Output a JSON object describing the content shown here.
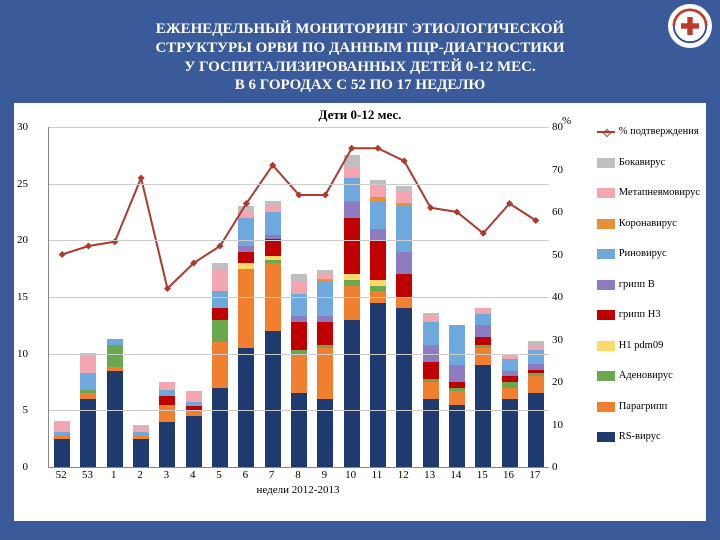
{
  "title_lines": [
    "ЕЖЕНЕДЕЛЬНЫЙ МОНИТОРИНГ ЭТИОЛОГИЧЕСКОЙ",
    "СТРУКТУРЫ ОРВИ ПО ДАННЫМ ПЦР-ДИАГНОСТИКИ",
    "У ГОСПИТАЛИЗИРОВАННЫХ ДЕТЕЙ 0-12 МЕС.",
    "В 6 ГОРОДАХ С 52 ПО 17 НЕДЕЛЮ"
  ],
  "chart": {
    "title": "Дети 0-12 мес.",
    "x_axis_label": "недели 2012-2013",
    "y_left": {
      "min": 0,
      "max": 30,
      "step": 5
    },
    "y_right": {
      "min": 0,
      "max": 80,
      "step": 10,
      "label": "%"
    },
    "categories": [
      "52",
      "53",
      "1",
      "2",
      "3",
      "4",
      "5",
      "6",
      "7",
      "8",
      "9",
      "10",
      "11",
      "12",
      "13",
      "14",
      "15",
      "16",
      "17"
    ],
    "series_colors": {
      "RS-вирус": "#1f3a6e",
      "Парагрипп": "#f08030",
      "Аденовирус": "#6aa84f",
      "H1 pdm09": "#ffd966",
      "грипп H3": "#c00000",
      "грипп B": "#8e7cc3",
      "Риновирус": "#6fa8dc",
      "Коронавирус": "#e69138",
      "Метапневмовирус": "#f4a6b0",
      "Бокавирус": "#bfbfbf"
    },
    "stack": [
      {
        "week": "52",
        "vals": {
          "RS-вирус": 2.5,
          "Парагрипп": 0.3,
          "Риновирус": 0.3,
          "Метапневмовирус": 1.0
        }
      },
      {
        "week": "53",
        "vals": {
          "RS-вирус": 6.0,
          "Парагрипп": 0.5,
          "Аденовирус": 0.3,
          "Риновирус": 1.5,
          "Метапневмовирус": 1.8
        }
      },
      {
        "week": "1",
        "vals": {
          "RS-вирус": 8.5,
          "Парагрипп": 0.3,
          "Аденовирус": 2.0,
          "Риновирус": 0.5
        }
      },
      {
        "week": "2",
        "vals": {
          "RS-вирус": 2.5,
          "Парагрипп": 0.2,
          "Риновирус": 0.4,
          "Метапневмовирус": 0.3,
          "Бокавирус": 0.3
        }
      },
      {
        "week": "3",
        "vals": {
          "RS-вирус": 4.0,
          "Парагрипп": 1.5,
          "грипп H3": 0.8,
          "Риновирус": 0.5,
          "Метапневмовирус": 0.7
        }
      },
      {
        "week": "4",
        "vals": {
          "RS-вирус": 4.5,
          "Парагрипп": 0.5,
          "грипп H3": 0.4,
          "Риновирус": 0.3,
          "Метапневмовирус": 1.0
        }
      },
      {
        "week": "5",
        "vals": {
          "RS-вирус": 7.0,
          "Парагрипп": 4.0,
          "Аденовирус": 2.0,
          "грипп H3": 1.0,
          "Риновирус": 1.5,
          "Метапневмовирус": 2.0,
          "Бокавирус": 0.5
        }
      },
      {
        "week": "6",
        "vals": {
          "RS-вирус": 10.5,
          "Парагрипп": 7.0,
          "H1 pdm09": 0.5,
          "грипп H3": 1.0,
          "грипп B": 0.5,
          "Риновирус": 2.5,
          "Метапневмовирус": 0.5,
          "Бокавирус": 0.5
        }
      },
      {
        "week": "7",
        "vals": {
          "RS-вирус": 12.0,
          "Парагрипп": 6.0,
          "Аденовирус": 0.3,
          "H1 pdm09": 0.3,
          "грипп H3": 1.5,
          "грипп B": 0.4,
          "Риновирус": 2.0,
          "Метапневмовирус": 0.5,
          "Бокавирус": 0.5
        }
      },
      {
        "week": "8",
        "vals": {
          "RS-вирус": 6.5,
          "Парагрипп": 3.5,
          "Аденовирус": 0.3,
          "грипп H3": 2.5,
          "грипп B": 0.5,
          "Риновирус": 2.0,
          "Метапневмовирус": 1.0,
          "Бокавирус": 0.7
        }
      },
      {
        "week": "9",
        "vals": {
          "RS-вирус": 6.0,
          "Парагрипп": 4.5,
          "Аденовирус": 0.3,
          "грипп H3": 2.0,
          "грипп B": 0.5,
          "Риновирус": 3.0,
          "Коронавирус": 0.3,
          "Метапневмовирус": 0.5,
          "Бокавирус": 0.3
        }
      },
      {
        "week": "10",
        "vals": {
          "RS-вирус": 13.0,
          "Парагрипп": 3.0,
          "Аденовирус": 0.5,
          "H1 pdm09": 0.5,
          "грипп H3": 5.0,
          "грипп B": 1.5,
          "Риновирус": 2.0,
          "Метапневмовирус": 1.0,
          "Бокавирус": 1.0
        }
      },
      {
        "week": "11",
        "vals": {
          "RS-вирус": 14.5,
          "Парагрипп": 1.0,
          "Аденовирус": 0.5,
          "H1 pdm09": 0.5,
          "грипп H3": 3.5,
          "грипп B": 1.0,
          "Риновирус": 2.5,
          "Коронавирус": 0.3,
          "Метапневмовирус": 1.0,
          "Бокавирус": 0.5
        }
      },
      {
        "week": "12",
        "vals": {
          "RS-вирус": 14.0,
          "Парагрипп": 1.0,
          "грипп H3": 2.0,
          "грипп B": 2.0,
          "Риновирус": 4.0,
          "Коронавирус": 0.3,
          "Метапневмовирус": 1.0,
          "Бокавирус": 0.5
        }
      },
      {
        "week": "13",
        "vals": {
          "RS-вирус": 6.0,
          "Парагрипп": 1.5,
          "Аденовирус": 0.3,
          "грипп H3": 1.5,
          "грипп B": 1.5,
          "Риновирус": 2.0,
          "Метапневмовирус": 0.5,
          "Бокавирус": 0.3
        }
      },
      {
        "week": "14",
        "vals": {
          "RS-вирус": 5.5,
          "Парагрипп": 1.2,
          "Аденовирус": 0.3,
          "грипп H3": 0.5,
          "грипп B": 1.5,
          "Риновирус": 3.5
        }
      },
      {
        "week": "15",
        "vals": {
          "RS-вирус": 9.0,
          "Парагрипп": 1.5,
          "Аденовирус": 0.3,
          "грипп H3": 0.7,
          "грипп B": 1.0,
          "Риновирус": 1.0,
          "Метапневмовирус": 0.5
        }
      },
      {
        "week": "16",
        "vals": {
          "RS-вирус": 6.0,
          "Парагрипп": 1.0,
          "Аденовирус": 0.5,
          "грипп H3": 0.5,
          "грипп B": 0.5,
          "Риновирус": 1.0,
          "Метапневмовирус": 0.5
        }
      },
      {
        "week": "17",
        "vals": {
          "RS-вирус": 6.5,
          "Парагрипп": 1.5,
          "Аденовирус": 0.3,
          "грипп H3": 0.3,
          "грипп B": 0.5,
          "Риновирус": 1.2,
          "Метапневмовирус": 0.5,
          "Бокавирус": 0.3
        }
      }
    ],
    "line_pct": [
      50,
      52,
      53,
      68,
      42,
      48,
      52,
      62,
      71,
      64,
      64,
      75,
      75,
      72,
      61,
      60,
      55,
      62,
      58
    ],
    "line_color": "#aa3b2e",
    "legend": [
      {
        "type": "line",
        "label": "% подтверждения",
        "color": "#aa3b2e"
      },
      {
        "type": "box",
        "label": "Бокавирус",
        "color": "#bfbfbf"
      },
      {
        "type": "box",
        "label": "Метапневмовирус",
        "color": "#f4a6b0"
      },
      {
        "type": "box",
        "label": "Коронавирус",
        "color": "#e69138"
      },
      {
        "type": "box",
        "label": "Риновирус",
        "color": "#6fa8dc"
      },
      {
        "type": "box",
        "label": "грипп B",
        "color": "#8e7cc3"
      },
      {
        "type": "box",
        "label": "грипп H3",
        "color": "#c00000"
      },
      {
        "type": "box",
        "label": "H1 pdm09",
        "color": "#ffd966"
      },
      {
        "type": "box",
        "label": "Аденовирус",
        "color": "#6aa84f"
      },
      {
        "type": "box",
        "label": "Парагрипп",
        "color": "#f08030"
      },
      {
        "type": "box",
        "label": "RS-вирус",
        "color": "#1f3a6e"
      }
    ]
  }
}
